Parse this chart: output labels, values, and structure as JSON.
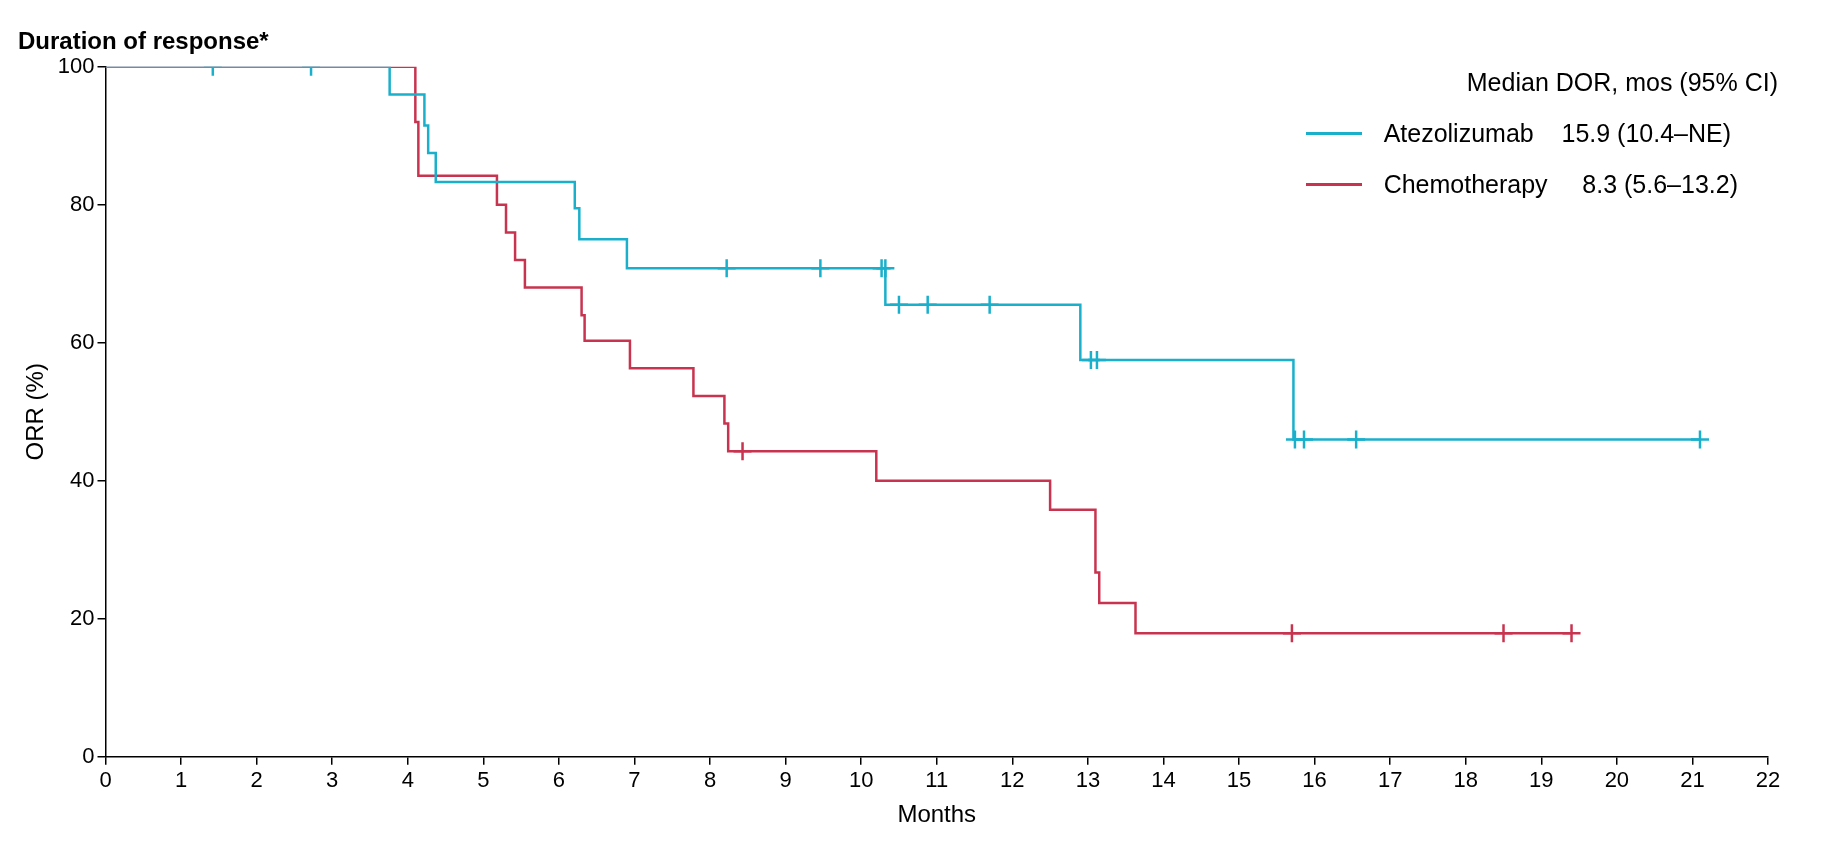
{
  "chart_data": {
    "type": "step",
    "title": "Duration of response*",
    "xlabel": "Months",
    "ylabel": "ORR (%)",
    "legend_title": "Median DOR, mos (95% CI)",
    "xlim": [
      0,
      22
    ],
    "xticks": [
      0,
      1,
      2,
      3,
      4,
      5,
      6,
      7,
      8,
      9,
      10,
      11,
      12,
      13,
      14,
      15,
      16,
      17,
      18,
      19,
      20,
      21,
      22
    ],
    "ylim": [
      0,
      100
    ],
    "yticks": [
      0,
      20,
      40,
      60,
      80,
      100
    ],
    "grid": false,
    "legend": "top right",
    "series": [
      {
        "name": "Atezolizumab    15.9 (10.4–NE)",
        "color": "#1ab0cc",
        "x": [
          0,
          3.76,
          4.22,
          4.27,
          4.37,
          6.21,
          6.27,
          6.9,
          10.32,
          12.9,
          15.72,
          21.1
        ],
        "values": [
          100,
          96,
          91.5,
          87.5,
          83.3,
          79.5,
          75,
          70.8,
          65.5,
          57.5,
          46,
          46
        ]
      },
      {
        "name": "Chemotherapy     8.3 (5.6–13.2)",
        "color": "#c8344f",
        "x": [
          0,
          4.1,
          4.14,
          5.18,
          5.3,
          5.42,
          5.55,
          6.3,
          6.34,
          6.94,
          7.78,
          8.19,
          8.24,
          10.2,
          12.5,
          13.1,
          13.15,
          13.63,
          19.4
        ],
        "values": [
          100,
          92,
          84.2,
          80,
          76,
          72,
          68,
          64,
          60.3,
          56.3,
          52.3,
          48.3,
          44.3,
          40,
          35.8,
          26.7,
          22.3,
          17.9,
          17.9
        ]
      },
      {
        "color": "#1ab0cc",
        "type": "scatter",
        "marker": "cross",
        "x": [
          1.42,
          2.72,
          8.22,
          9.46,
          10.27,
          10.32,
          10.5,
          10.88,
          11.7,
          13.04,
          13.12,
          15.74,
          15.86,
          16.55,
          21.1
        ],
        "values": [
          100,
          100,
          70.8,
          70.8,
          70.8,
          70.8,
          65.5,
          65.5,
          65.5,
          57.5,
          57.5,
          46,
          46,
          46,
          46
        ]
      },
      {
        "color": "#c8344f",
        "type": "scatter",
        "marker": "cross",
        "x": [
          8.43,
          15.7,
          18.5,
          19.4
        ],
        "values": [
          44.3,
          17.9,
          17.9,
          17.9
        ]
      }
    ]
  }
}
